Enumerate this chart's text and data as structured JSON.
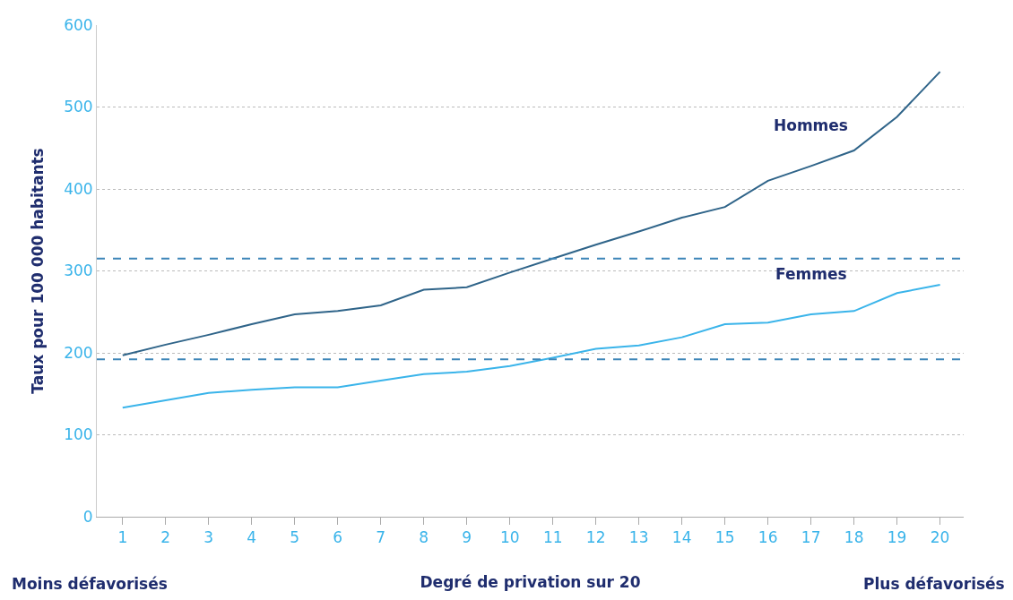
{
  "chart_data": {
    "type": "line",
    "xlabel": "Degré de privation sur 20",
    "ylabel": "Taux pour 100 000 habitants",
    "x": [
      1,
      2,
      3,
      4,
      5,
      6,
      7,
      8,
      9,
      10,
      11,
      12,
      13,
      14,
      15,
      16,
      17,
      18,
      19,
      20
    ],
    "series": [
      {
        "name": "Hommes",
        "color": "#2f6489",
        "values": [
          197,
          210,
          222,
          235,
          247,
          251,
          258,
          277,
          280,
          298,
          315,
          332,
          348,
          365,
          378,
          410,
          428,
          447,
          488,
          543
        ]
      },
      {
        "name": "Femmes",
        "color": "#3ab4ea",
        "values": [
          133,
          142,
          151,
          155,
          158,
          158,
          166,
          174,
          177,
          184,
          194,
          205,
          209,
          219,
          235,
          237,
          247,
          251,
          273,
          283
        ]
      }
    ],
    "ref_lines": [
      {
        "axis": "y",
        "value": 315,
        "color": "#3c85b8",
        "line_style": "dashed"
      },
      {
        "axis": "y",
        "value": 192,
        "color": "#3c85b8",
        "line_style": "dashed"
      }
    ],
    "annotations": [
      "Moins défavorisés",
      "Plus défavorisés"
    ],
    "xlim": [
      0.4,
      20.55
    ],
    "xticks": [
      1,
      2,
      3,
      4,
      5,
      6,
      7,
      8,
      9,
      10,
      11,
      12,
      13,
      14,
      15,
      16,
      17,
      18,
      19,
      20
    ],
    "ylim": [
      0,
      600
    ],
    "yticks": [
      0,
      100,
      200,
      300,
      400,
      500,
      600
    ],
    "grid": "y",
    "marker": "none",
    "line_style": "solid"
  }
}
